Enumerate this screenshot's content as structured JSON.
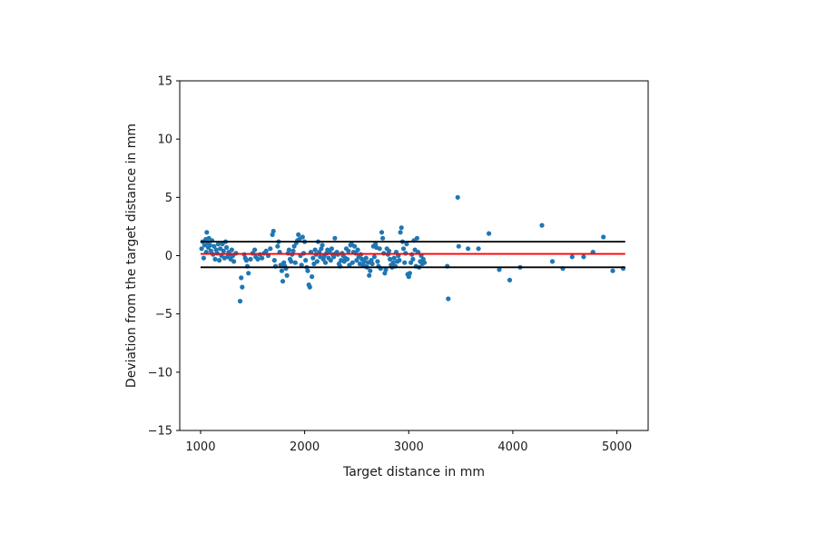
{
  "chart_data": {
    "type": "scatter",
    "title": "",
    "xlabel": "Target distance in mm",
    "ylabel": "Deviation from the target distance in mm",
    "xlim": [
      800,
      5300
    ],
    "ylim": [
      -15,
      15
    ],
    "xticks": [
      1000,
      2000,
      3000,
      4000,
      5000
    ],
    "yticks": [
      -15,
      -10,
      -5,
      0,
      5,
      10,
      15
    ],
    "xtick_labels": [
      "1000",
      "2000",
      "3000",
      "4000",
      "5000"
    ],
    "ytick_labels": [
      "−15",
      "−10",
      "−5",
      "0",
      "5",
      "10",
      "15"
    ],
    "grid": false,
    "colors": {
      "points": "#1f77b4",
      "mean_line": "#ff0000",
      "limit_lines": "#000000"
    },
    "reference_lines": [
      {
        "role": "upper",
        "y": 1.2,
        "x_range": [
          1000,
          5080
        ],
        "color": "#000000"
      },
      {
        "role": "mean",
        "y": 0.15,
        "x_range": [
          1000,
          5080
        ],
        "color": "#ff0000"
      },
      {
        "role": "lower",
        "y": -1.0,
        "x_range": [
          1000,
          5080
        ],
        "color": "#000000"
      }
    ],
    "points": [
      [
        1010,
        0.6
      ],
      [
        1020,
        1.2
      ],
      [
        1030,
        -0.2
      ],
      [
        1040,
        0.9
      ],
      [
        1050,
        1.4
      ],
      [
        1055,
        0.3
      ],
      [
        1060,
        2.0
      ],
      [
        1070,
        1.1
      ],
      [
        1075,
        0.7
      ],
      [
        1080,
        1.5
      ],
      [
        1090,
        0.9
      ],
      [
        1100,
        0.4
      ],
      [
        1110,
        1.3
      ],
      [
        1120,
        0.1
      ],
      [
        1130,
        0.8
      ],
      [
        1140,
        -0.3
      ],
      [
        1150,
        0.5
      ],
      [
        1160,
        0.2
      ],
      [
        1170,
        1.0
      ],
      [
        1180,
        -0.4
      ],
      [
        1190,
        0.6
      ],
      [
        1200,
        0.0
      ],
      [
        1210,
        1.0
      ],
      [
        1220,
        0.4
      ],
      [
        1230,
        -0.2
      ],
      [
        1240,
        1.2
      ],
      [
        1250,
        0.7
      ],
      [
        1260,
        -0.1
      ],
      [
        1270,
        0.3
      ],
      [
        1280,
        0.1
      ],
      [
        1290,
        -0.3
      ],
      [
        1300,
        0.5
      ],
      [
        1310,
        0.0
      ],
      [
        1320,
        -0.5
      ],
      [
        1340,
        0.2
      ],
      [
        1380,
        -3.9
      ],
      [
        1390,
        -1.9
      ],
      [
        1400,
        -2.7
      ],
      [
        1420,
        0.1
      ],
      [
        1430,
        -0.2
      ],
      [
        1440,
        -0.4
      ],
      [
        1450,
        -0.9
      ],
      [
        1460,
        -1.5
      ],
      [
        1480,
        -0.3
      ],
      [
        1500,
        0.2
      ],
      [
        1520,
        0.5
      ],
      [
        1530,
        -0.1
      ],
      [
        1550,
        -0.3
      ],
      [
        1570,
        0.1
      ],
      [
        1590,
        -0.2
      ],
      [
        1610,
        0.2
      ],
      [
        1630,
        0.4
      ],
      [
        1650,
        0.0
      ],
      [
        1670,
        0.6
      ],
      [
        1690,
        1.8
      ],
      [
        1700,
        2.1
      ],
      [
        1710,
        -0.4
      ],
      [
        1720,
        -0.9
      ],
      [
        1740,
        0.8
      ],
      [
        1750,
        1.2
      ],
      [
        1760,
        0.3
      ],
      [
        1770,
        -0.8
      ],
      [
        1780,
        -1.3
      ],
      [
        1790,
        -2.2
      ],
      [
        1800,
        -0.6
      ],
      [
        1810,
        -0.9
      ],
      [
        1820,
        -1.1
      ],
      [
        1830,
        -1.7
      ],
      [
        1840,
        0.2
      ],
      [
        1850,
        0.5
      ],
      [
        1860,
        -0.3
      ],
      [
        1870,
        -0.5
      ],
      [
        1880,
        0.1
      ],
      [
        1890,
        0.4
      ],
      [
        1900,
        0.8
      ],
      [
        1910,
        -0.6
      ],
      [
        1920,
        1.1
      ],
      [
        1930,
        1.3
      ],
      [
        1940,
        1.8
      ],
      [
        1950,
        1.4
      ],
      [
        1960,
        0.0
      ],
      [
        1970,
        -0.8
      ],
      [
        1980,
        1.6
      ],
      [
        1990,
        0.2
      ],
      [
        2000,
        1.2
      ],
      [
        2010,
        -0.4
      ],
      [
        2020,
        -1.0
      ],
      [
        2030,
        -1.3
      ],
      [
        2040,
        -2.5
      ],
      [
        2050,
        -2.7
      ],
      [
        2060,
        0.3
      ],
      [
        2070,
        -1.8
      ],
      [
        2080,
        -0.2
      ],
      [
        2090,
        -0.7
      ],
      [
        2100,
        0.5
      ],
      [
        2110,
        0.1
      ],
      [
        2120,
        -0.5
      ],
      [
        2130,
        1.2
      ],
      [
        2140,
        0.3
      ],
      [
        2150,
        -0.1
      ],
      [
        2160,
        0.6
      ],
      [
        2170,
        0.9
      ],
      [
        2180,
        -0.3
      ],
      [
        2190,
        0.0
      ],
      [
        2200,
        -0.6
      ],
      [
        2210,
        0.2
      ],
      [
        2220,
        0.5
      ],
      [
        2230,
        -0.2
      ],
      [
        2240,
        0.4
      ],
      [
        2250,
        -0.4
      ],
      [
        2260,
        0.6
      ],
      [
        2270,
        0.1
      ],
      [
        2280,
        -0.1
      ],
      [
        2290,
        1.5
      ],
      [
        2300,
        0.2
      ],
      [
        2310,
        0.3
      ],
      [
        2320,
        0.1
      ],
      [
        2330,
        -0.7
      ],
      [
        2340,
        -0.9
      ],
      [
        2350,
        -0.4
      ],
      [
        2360,
        0.2
      ],
      [
        2370,
        0.0
      ],
      [
        2380,
        -0.5
      ],
      [
        2390,
        -0.2
      ],
      [
        2400,
        0.6
      ],
      [
        2410,
        -0.3
      ],
      [
        2420,
        0.4
      ],
      [
        2430,
        -0.8
      ],
      [
        2440,
        0.9
      ],
      [
        2450,
        1.0
      ],
      [
        2460,
        -0.6
      ],
      [
        2470,
        0.3
      ],
      [
        2480,
        0.8
      ],
      [
        2490,
        0.2
      ],
      [
        2500,
        -0.4
      ],
      [
        2510,
        0.5
      ],
      [
        2520,
        -0.1
      ],
      [
        2530,
        -0.7
      ],
      [
        2540,
        0.1
      ],
      [
        2550,
        -0.3
      ],
      [
        2560,
        -0.8
      ],
      [
        2570,
        -0.5
      ],
      [
        2580,
        -0.9
      ],
      [
        2590,
        -0.2
      ],
      [
        2600,
        -1.0
      ],
      [
        2610,
        -0.6
      ],
      [
        2620,
        -1.7
      ],
      [
        2630,
        -1.3
      ],
      [
        2640,
        -0.4
      ],
      [
        2650,
        -0.7
      ],
      [
        2660,
        0.8
      ],
      [
        2670,
        -0.1
      ],
      [
        2680,
        1.0
      ],
      [
        2690,
        0.7
      ],
      [
        2700,
        -0.5
      ],
      [
        2710,
        -0.9
      ],
      [
        2720,
        0.6
      ],
      [
        2730,
        -1.1
      ],
      [
        2740,
        2.0
      ],
      [
        2750,
        1.5
      ],
      [
        2760,
        0.2
      ],
      [
        2770,
        -1.5
      ],
      [
        2780,
        -1.2
      ],
      [
        2790,
        0.6
      ],
      [
        2800,
        0.1
      ],
      [
        2810,
        0.4
      ],
      [
        2820,
        -0.3
      ],
      [
        2830,
        -0.8
      ],
      [
        2840,
        -1.0
      ],
      [
        2850,
        -0.6
      ],
      [
        2860,
        -0.2
      ],
      [
        2870,
        -0.9
      ],
      [
        2880,
        0.3
      ],
      [
        2890,
        -0.5
      ],
      [
        2900,
        0.0
      ],
      [
        2910,
        -0.4
      ],
      [
        2920,
        2.0
      ],
      [
        2930,
        2.4
      ],
      [
        2940,
        1.2
      ],
      [
        2950,
        0.6
      ],
      [
        2960,
        -0.6
      ],
      [
        2970,
        0.2
      ],
      [
        2980,
        1.0
      ],
      [
        2990,
        -1.6
      ],
      [
        3000,
        -1.8
      ],
      [
        3010,
        -1.5
      ],
      [
        3020,
        -0.6
      ],
      [
        3030,
        0.1
      ],
      [
        3040,
        -0.3
      ],
      [
        3050,
        1.3
      ],
      [
        3060,
        0.5
      ],
      [
        3070,
        -0.9
      ],
      [
        3080,
        1.5
      ],
      [
        3090,
        0.3
      ],
      [
        3100,
        -1.0
      ],
      [
        3110,
        -0.5
      ],
      [
        3120,
        0.0
      ],
      [
        3130,
        -0.7
      ],
      [
        3140,
        -0.3
      ],
      [
        3150,
        -0.6
      ],
      [
        3370,
        -0.9
      ],
      [
        3380,
        -3.7
      ],
      [
        3470,
        5.0
      ],
      [
        3480,
        0.8
      ],
      [
        3570,
        0.6
      ],
      [
        3670,
        0.6
      ],
      [
        3770,
        1.9
      ],
      [
        3870,
        -1.2
      ],
      [
        3970,
        -2.1
      ],
      [
        4070,
        -1.0
      ],
      [
        4280,
        2.6
      ],
      [
        4380,
        -0.5
      ],
      [
        4480,
        -1.1
      ],
      [
        4570,
        -0.1
      ],
      [
        4680,
        -0.1
      ],
      [
        4770,
        0.3
      ],
      [
        4870,
        1.6
      ],
      [
        4960,
        -1.3
      ],
      [
        5060,
        -1.1
      ]
    ]
  }
}
